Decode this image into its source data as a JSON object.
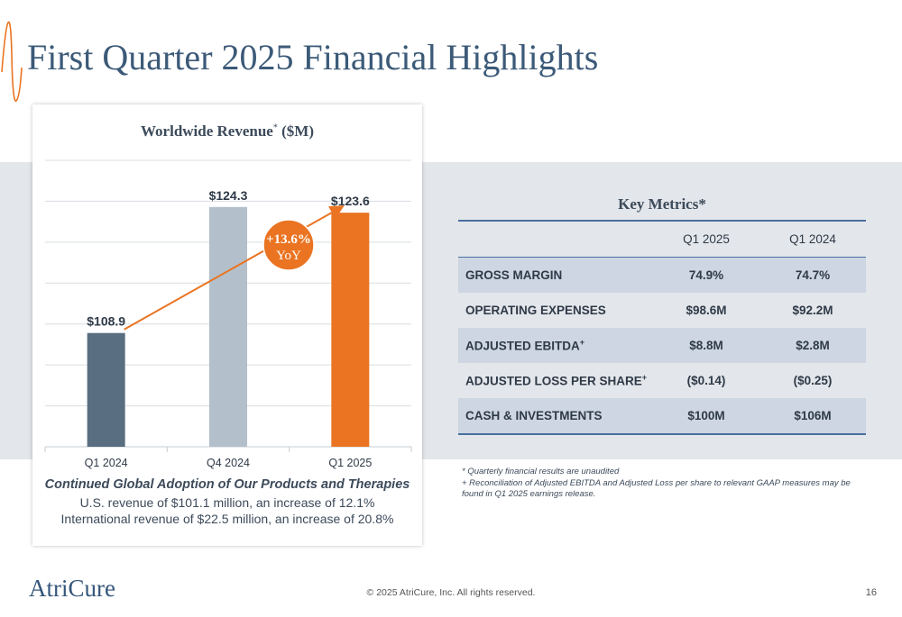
{
  "slide": {
    "title": "First Quarter 2025 Financial Highlights",
    "logo": "AtriCure",
    "copyright": "© 2025 AtriCure, Inc. All rights reserved.",
    "page_number": "16"
  },
  "chart_panel": {
    "title": "Worldwide Revenue",
    "title_mark": "*",
    "title_unit": " ($M)",
    "caption_title": "Continued Global Adoption of Our Products and Therapies",
    "caption_lines": [
      "U.S. revenue of $101.1 million, an increase of 12.1%",
      "International revenue of $22.5 million, an increase of 20.8%"
    ]
  },
  "chart_data": {
    "type": "bar",
    "title": "Worldwide Revenue* ($M)",
    "categories": [
      "Q1 2024",
      "Q4 2024",
      "Q1 2025"
    ],
    "values": [
      108.9,
      124.3,
      123.6
    ],
    "data_labels": [
      "$108.9",
      "$124.3",
      "$123.6"
    ],
    "bar_colors": [
      "#596e80",
      "#b3c0cb",
      "#ea7422"
    ],
    "ylim": [
      95,
      130
    ],
    "grid": true,
    "annotation": {
      "line1": "+13.6%",
      "line2": "YoY",
      "color": "#ea7422",
      "from": "Q1 2024",
      "to": "Q1 2025"
    }
  },
  "metrics": {
    "title": "Key Metrics*",
    "columns": [
      "Q1 2025",
      "Q1 2024"
    ],
    "rows": [
      {
        "label": "GROSS MARGIN",
        "mark": "",
        "q1_2025": "74.9%",
        "q1_2024": "74.7%"
      },
      {
        "label": "OPERATING EXPENSES",
        "mark": "",
        "q1_2025": "$98.6M",
        "q1_2024": "$92.2M"
      },
      {
        "label": "ADJUSTED EBITDA",
        "mark": "+",
        "q1_2025": "$8.8M",
        "q1_2024": "$2.8M"
      },
      {
        "label": "ADJUSTED LOSS PER SHARE",
        "mark": "+",
        "q1_2025": "($0.14)",
        "q1_2024": "($0.25)"
      },
      {
        "label": "CASH & INVESTMENTS",
        "mark": "",
        "q1_2025": "$100M",
        "q1_2024": "$106M"
      }
    ]
  },
  "footnotes": [
    "* Quarterly financial results are unaudited",
    "+ Reconciliation of Adjusted EBITDA and Adjusted Loss per share to relevant GAAP measures may be found in Q1 2025 earnings release."
  ],
  "colors": {
    "title": "#3c5a78",
    "accent": "#ea7422",
    "table_rule": "#4a6fa0"
  }
}
